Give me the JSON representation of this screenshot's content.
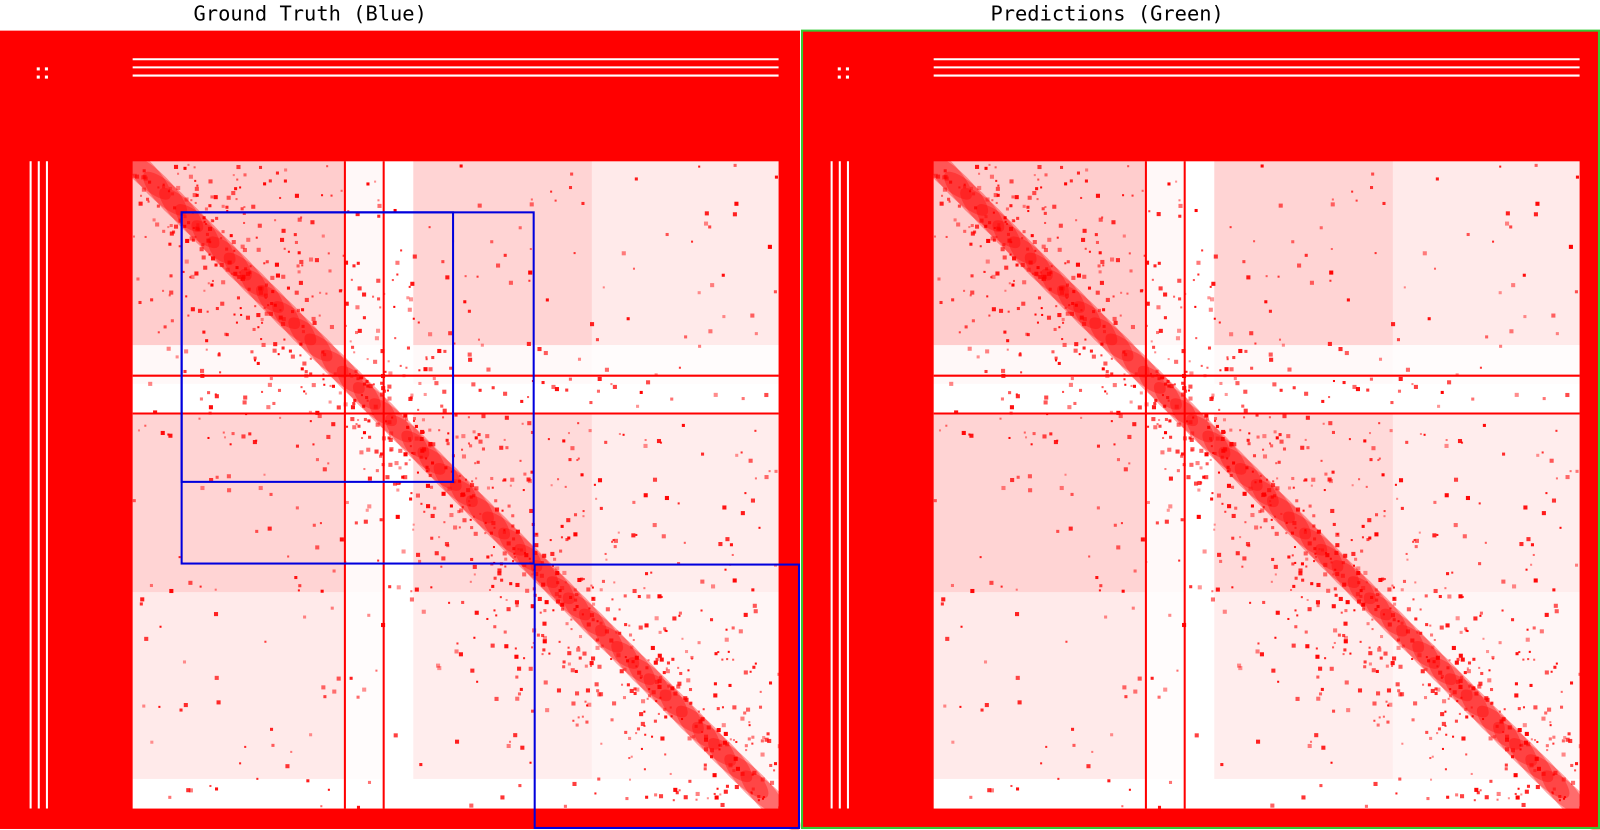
{
  "panels": [
    {
      "title": "Ground Truth (Blue)"
    },
    {
      "title": "Predictions (Green)"
    }
  ]
}
